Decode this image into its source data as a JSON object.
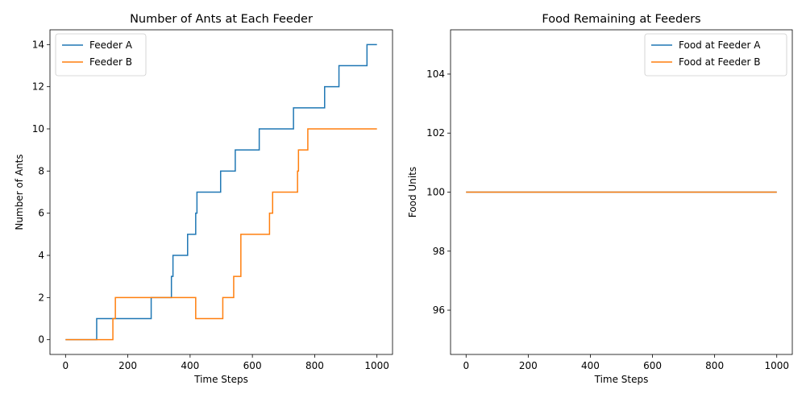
{
  "chart_data": [
    {
      "type": "line",
      "title": "Number of Ants at Each Feeder",
      "xlabel": "Time Steps",
      "ylabel": "Number of Ants",
      "xlim": [
        -50,
        1050
      ],
      "ylim": [
        -0.7,
        14.7
      ],
      "xticks": [
        0,
        200,
        400,
        600,
        800,
        1000
      ],
      "yticks": [
        0,
        2,
        4,
        6,
        8,
        10,
        12,
        14
      ],
      "legend": "top-left",
      "grid": false,
      "step": true,
      "series": [
        {
          "name": "Feeder A",
          "color": "#1f77b4",
          "x": [
            0,
            100,
            275,
            340,
            342,
            345,
            392,
            418,
            420,
            422,
            498,
            545,
            622,
            732,
            832,
            878,
            968,
            1000
          ],
          "y": [
            0,
            1,
            2,
            3,
            3,
            4,
            5,
            6,
            6,
            7,
            8,
            9,
            10,
            11,
            12,
            13,
            14,
            14
          ]
        },
        {
          "name": "Feeder B",
          "color": "#ff7f0e",
          "x": [
            0,
            152,
            160,
            418,
            505,
            540,
            563,
            655,
            660,
            665,
            745,
            748,
            752,
            778,
            1000
          ],
          "y": [
            0,
            1,
            2,
            1,
            2,
            3,
            5,
            6,
            6,
            7,
            8,
            9,
            9,
            10,
            10
          ]
        }
      ]
    },
    {
      "type": "line",
      "title": "Food Remaining at Feeders",
      "xlabel": "Time Steps",
      "ylabel": "Food Units",
      "xlim": [
        -50,
        1050
      ],
      "ylim": [
        94.5,
        105.5
      ],
      "xticks": [
        0,
        200,
        400,
        600,
        800,
        1000
      ],
      "yticks": [
        96,
        98,
        100,
        102,
        104
      ],
      "legend": "top-right",
      "grid": false,
      "series": [
        {
          "name": "Food at Feeder A",
          "color": "#1f77b4",
          "x": [
            0,
            1000
          ],
          "y": [
            100,
            100
          ]
        },
        {
          "name": "Food at Feeder B",
          "color": "#ff7f0e",
          "x": [
            0,
            1000
          ],
          "y": [
            100,
            100
          ]
        }
      ]
    }
  ]
}
